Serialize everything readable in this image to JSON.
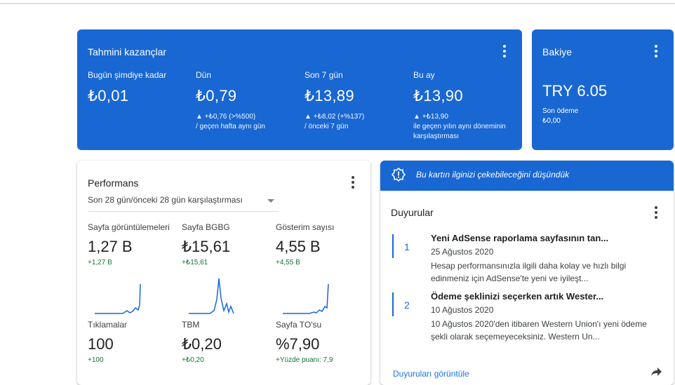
{
  "earnings": {
    "title": "Tahmini kazançlar",
    "columns": [
      {
        "label": "Bugün şimdiye kadar",
        "value": "₺0,01",
        "change": "",
        "compare": ""
      },
      {
        "label": "Dün",
        "value": "₺0,79",
        "change": "▲ +₺0,76 (>%500)",
        "compare": "/ geçen hafta aynı gün"
      },
      {
        "label": "Son 7 gün",
        "value": "₺13,89",
        "change": "▲ +₺8,02 (+%137)",
        "compare": "/ önceki 7 gün"
      },
      {
        "label": "Bu ay",
        "value": "₺13,90",
        "change": "▲ +₺13,90",
        "compare": "ile geçen yılın aynı döneminin karşılaştırması"
      }
    ]
  },
  "balance": {
    "title": "Bakiye",
    "value": "TRY 6.05",
    "last_payment_label": "Son ödeme",
    "last_payment_value": "₺0,00"
  },
  "performance": {
    "title": "Performans",
    "range": "Son 28 gün/önceki 28 gün karşılaştırması",
    "metrics": [
      {
        "label": "Sayfa görüntülemeleri",
        "value": "1,27 B",
        "change": "+1,27 B"
      },
      {
        "label": "Sayfa BGBG",
        "value": "₺15,61",
        "change": "+₺15,61"
      },
      {
        "label": "Gösterim sayısı",
        "value": "4,55 B",
        "change": "+4,55 B"
      },
      {
        "label": "Tıklamalar",
        "value": "100",
        "change": "+100"
      },
      {
        "label": "TBM",
        "value": "₺0,20",
        "change": "+₺0,20"
      },
      {
        "label": "Sayfa TO'su",
        "value": "%7,90",
        "change": "+Yüzde puanı: 7,9"
      }
    ],
    "spark_color": "#1967d2"
  },
  "notice": {
    "banner": "Bu kartın ilginizi çekebileceğini düşündük",
    "title": "Duyurular",
    "items": [
      {
        "num": "1",
        "title": "Yeni AdSense raporlama sayfasının tan...",
        "date": "25 Ağustos 2020",
        "desc": "Hesap performansınızla ilgili daha kolay ve hızlı bilgi edinmeniz için AdSense'te yeni ve iyileşt..."
      },
      {
        "num": "2",
        "title": "Ödeme şeklinizi seçerken artık Wester...",
        "date": "10 Ağustos 2020",
        "desc": "10 Ağustos 2020'den itibaren Western Union'ı yeni ödeme şekli olarak seçemeyeceksiniz. Western Un..."
      }
    ],
    "link": "Duyuruları görüntüle"
  },
  "colors": {
    "brand_blue": "#1967d2",
    "positive": "#137333"
  }
}
